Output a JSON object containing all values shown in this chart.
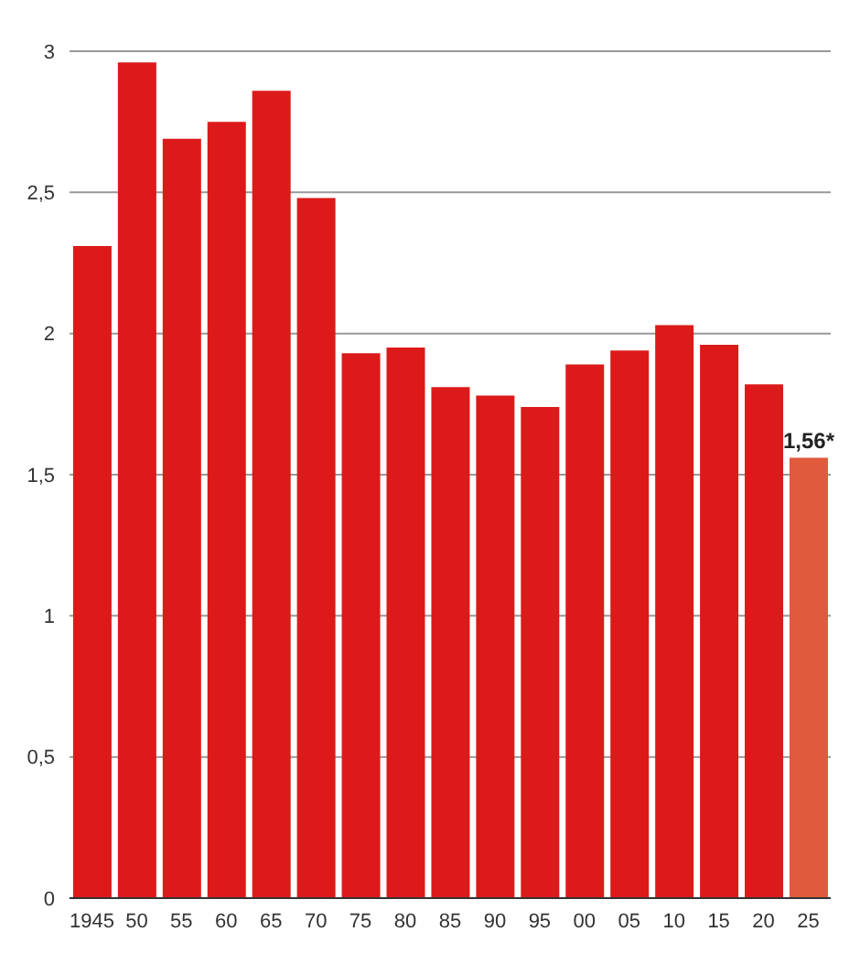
{
  "chart_data": {
    "type": "bar",
    "categories": [
      "1945",
      "50",
      "55",
      "60",
      "65",
      "70",
      "75",
      "80",
      "85",
      "90",
      "95",
      "00",
      "05",
      "10",
      "15",
      "20",
      "25"
    ],
    "values": [
      2.31,
      2.96,
      2.69,
      2.75,
      2.86,
      2.48,
      1.93,
      1.95,
      1.81,
      1.78,
      1.74,
      1.89,
      1.94,
      2.03,
      1.96,
      1.82,
      1.56
    ],
    "colors": [
      "#dc1a1a",
      "#dc1a1a",
      "#dc1a1a",
      "#dc1a1a",
      "#dc1a1a",
      "#dc1a1a",
      "#dc1a1a",
      "#dc1a1a",
      "#dc1a1a",
      "#dc1a1a",
      "#dc1a1a",
      "#dc1a1a",
      "#dc1a1a",
      "#dc1a1a",
      "#dc1a1a",
      "#dc1a1a",
      "#e05a3c"
    ],
    "value_labels": [
      null,
      null,
      null,
      null,
      null,
      null,
      null,
      null,
      null,
      null,
      null,
      null,
      null,
      null,
      null,
      null,
      "1,56*"
    ],
    "ylim": [
      0,
      3
    ],
    "yticks": [
      0,
      {
        "value": 0.5,
        "label": "0,5"
      },
      1,
      {
        "value": 1.5,
        "label": "1,5"
      },
      2,
      {
        "value": 2.5,
        "label": "2,5"
      },
      3
    ],
    "grid": "y"
  }
}
